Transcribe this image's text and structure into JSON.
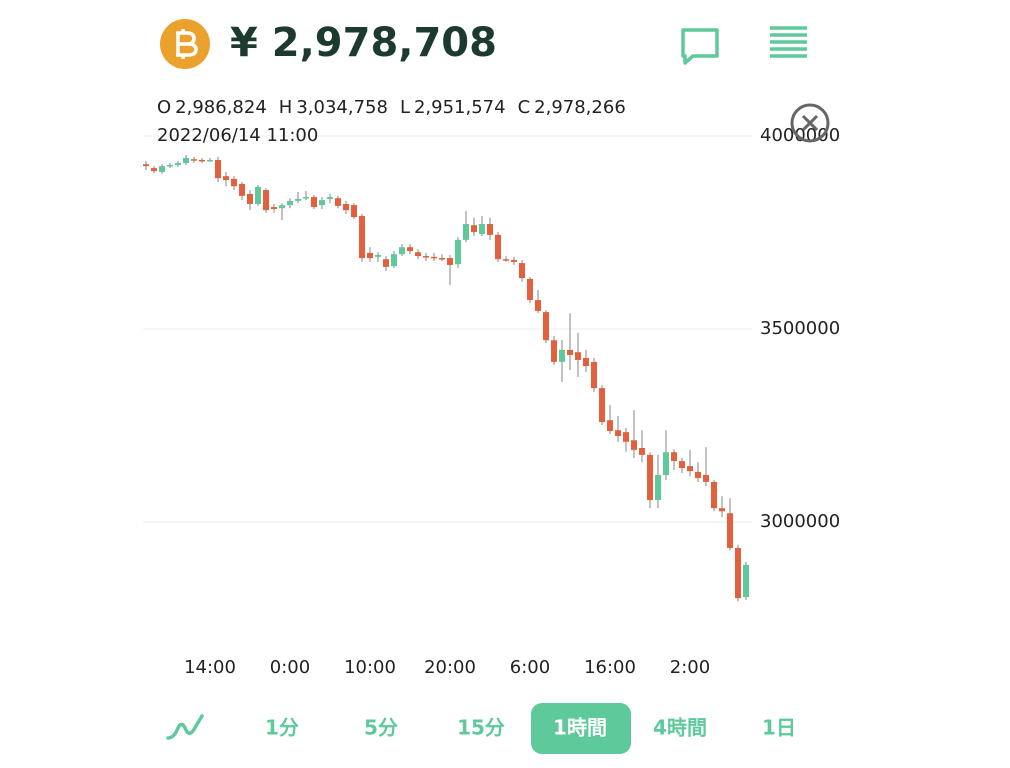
{
  "header": {
    "price": "¥ 2,978,708",
    "ohlc": [
      {
        "label": "O",
        "value": "2,986,824"
      },
      {
        "label": "H",
        "value": "3,034,758"
      },
      {
        "label": "L",
        "value": "2,951,574"
      },
      {
        "label": "C",
        "value": "2,978,266"
      }
    ],
    "date": "2022/06/14 11:00"
  },
  "chart_data": {
    "type": "candlestick",
    "categories": [
      null,
      null,
      null,
      null,
      null,
      null,
      null,
      null,
      "14:00",
      null,
      null,
      null,
      null,
      null,
      null,
      null,
      null,
      null,
      "0:00",
      null,
      null,
      null,
      null,
      null,
      null,
      null,
      null,
      null,
      "10:00",
      null,
      null,
      null,
      null,
      null,
      null,
      null,
      null,
      null,
      "20:00",
      null,
      null,
      null,
      null,
      null,
      null,
      null,
      null,
      null,
      "6:00",
      null,
      null,
      null,
      null,
      null,
      null,
      null,
      null,
      null,
      "16:00",
      null,
      null,
      null,
      null,
      null,
      null,
      null,
      null,
      null,
      "2:00",
      null,
      null,
      null,
      null,
      null,
      null,
      null
    ],
    "open": [
      3927000,
      3917000,
      3907000,
      3922000,
      3925000,
      3930000,
      3940000,
      3938000,
      3935000,
      3938000,
      3896000,
      3889000,
      3876000,
      3850000,
      3824000,
      3860000,
      3816000,
      3813000,
      3821000,
      3832000,
      3839000,
      3842000,
      3821000,
      3837000,
      3839000,
      3824000,
      3821000,
      3793000,
      3697000,
      3687000,
      3681000,
      3663000,
      3694000,
      3712000,
      3699000,
      3689000,
      3687000,
      3684000,
      3684000,
      3668000,
      3731000,
      3769000,
      3746000,
      3772000,
      3744000,
      3681000,
      3679000,
      3671000,
      3630000,
      3575000,
      3544000,
      3471000,
      3415000,
      3446000,
      3440000,
      3425000,
      3415000,
      3347000,
      3264000,
      3238000,
      3233000,
      3212000,
      3192000,
      3174000,
      3057000,
      3122000,
      3181000,
      3158000,
      3145000,
      3130000,
      3122000,
      3104000,
      3036000,
      3023000,
      2933000,
      2806000
    ],
    "high": [
      3935000,
      3922000,
      3927000,
      3930000,
      3935000,
      3951000,
      3946000,
      3943000,
      3943000,
      3946000,
      3907000,
      3896000,
      3881000,
      3860000,
      3873000,
      3865000,
      3824000,
      3826000,
      3839000,
      3855000,
      3858000,
      3847000,
      3842000,
      3850000,
      3845000,
      3832000,
      3826000,
      3798000,
      3712000,
      3699000,
      3689000,
      3702000,
      3720000,
      3720000,
      3707000,
      3697000,
      3697000,
      3694000,
      3692000,
      3738000,
      3806000,
      3788000,
      3793000,
      3788000,
      3751000,
      3689000,
      3687000,
      3679000,
      3635000,
      3601000,
      3549000,
      3482000,
      3472000,
      3541000,
      3490000,
      3446000,
      3425000,
      3355000,
      3303000,
      3275000,
      3244000,
      3290000,
      3238000,
      3181000,
      3174000,
      3238000,
      3189000,
      3166000,
      3187000,
      3155000,
      3194000,
      3109000,
      3067000,
      3062000,
      2941000,
      2897000
    ],
    "low": [
      3912000,
      3904000,
      3902000,
      3917000,
      3920000,
      3925000,
      3930000,
      3930000,
      3933000,
      3881000,
      3870000,
      3860000,
      3834000,
      3808000,
      3819000,
      3801000,
      3801000,
      3782000,
      3813000,
      3826000,
      3834000,
      3811000,
      3811000,
      3826000,
      3813000,
      3798000,
      3785000,
      3674000,
      3674000,
      3674000,
      3650000,
      3658000,
      3689000,
      3694000,
      3681000,
      3676000,
      3676000,
      3676000,
      3614000,
      3658000,
      3725000,
      3741000,
      3741000,
      3731000,
      3674000,
      3674000,
      3666000,
      3622000,
      3567000,
      3541000,
      3464000,
      3407000,
      3363000,
      3394000,
      3376000,
      3389000,
      3337000,
      3251000,
      3228000,
      3208000,
      3182000,
      3166000,
      3155000,
      3036000,
      3036000,
      3109000,
      3135000,
      3127000,
      3119000,
      3104000,
      3093000,
      3028000,
      3013000,
      2927000,
      2795000,
      2798000
    ],
    "close": [
      3922000,
      3909000,
      3922000,
      3925000,
      3930000,
      3943000,
      3938000,
      3935000,
      3938000,
      3891000,
      3886000,
      3870000,
      3845000,
      3824000,
      3868000,
      3808000,
      3811000,
      3821000,
      3832000,
      3837000,
      3842000,
      3816000,
      3834000,
      3842000,
      3819000,
      3808000,
      3790000,
      3684000,
      3684000,
      3692000,
      3661000,
      3694000,
      3712000,
      3702000,
      3689000,
      3687000,
      3686000,
      3683000,
      3666000,
      3731000,
      3772000,
      3751000,
      3772000,
      3744000,
      3681000,
      3679000,
      3674000,
      3632000,
      3575000,
      3547000,
      3471000,
      3415000,
      3446000,
      3433000,
      3420000,
      3404000,
      3347000,
      3259000,
      3236000,
      3223000,
      3208000,
      3187000,
      3174000,
      3057000,
      3122000,
      3181000,
      3158000,
      3140000,
      3132000,
      3114000,
      3104000,
      3036000,
      3028000,
      2933000,
      2803000,
      2889000
    ],
    "up_color": "#5ec99b",
    "down_color": "#e2603e",
    "ylim": [
      2700000,
      4020000
    ],
    "yticks": [
      3000000,
      3500000,
      4000000
    ],
    "grid": true
  },
  "tabs": [
    "1分",
    "5分",
    "15分",
    "1時間",
    "4時間",
    "1日"
  ],
  "active_tab": 3
}
